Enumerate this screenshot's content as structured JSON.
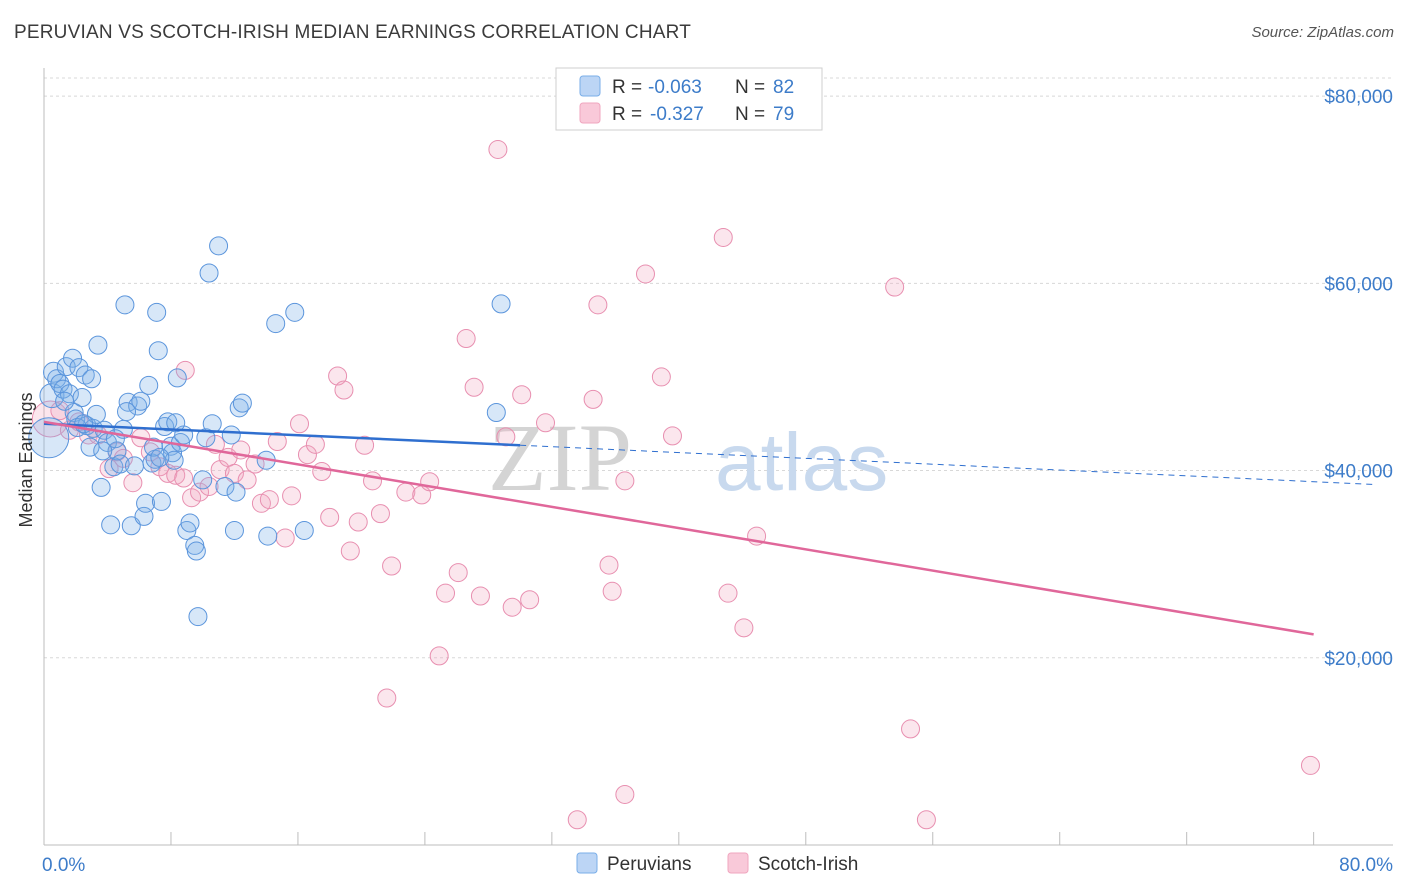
{
  "title": "PERUVIAN VS SCOTCH-IRISH MEDIAN EARNINGS CORRELATION CHART",
  "source": "Source: ZipAtlas.com",
  "watermark": {
    "zip": "ZIP",
    "atlas": "atlas"
  },
  "colors": {
    "blue": "#7aaee8",
    "blue_line": "#2f6fcf",
    "pink": "#f0a6bf",
    "pink_line": "#e0679a",
    "grid": "#d8d8d8",
    "axis_text": "#3d7cc9"
  },
  "legend": {
    "rows": [
      {
        "r_label": "R = ",
        "r_value": "-0.063",
        "n_label": "N = ",
        "n_value": "82"
      },
      {
        "r_label": "R = ",
        "r_value": "-0.327",
        "n_label": "N = ",
        "n_value": "79"
      }
    ]
  },
  "bottom_legend": [
    "Peruvians",
    "Scotch-Irish"
  ],
  "chart_data": {
    "type": "scatter",
    "title": "PERUVIAN VS SCOTCH-IRISH MEDIAN EARNINGS CORRELATION CHART",
    "xlabel": "",
    "ylabel": "Median Earnings",
    "xlim": [
      0,
      85
    ],
    "ylim": [
      0,
      83000
    ],
    "x_tick_labels": [
      "0.0%",
      "80.0%"
    ],
    "y_ticks": [
      20000,
      40000,
      60000,
      80000
    ],
    "y_tick_labels": [
      "$20,000",
      "$40,000",
      "$60,000",
      "$80,000"
    ],
    "series": [
      {
        "name": "Peruvians",
        "r": -0.063,
        "n": 82,
        "trend": {
          "x0": 0,
          "y0": 45000,
          "x1": 30,
          "y1": 42700,
          "dash_to_x": 84,
          "dash_to_y": 38500
        },
        "points": [
          [
            0.3,
            43500,
            20
          ],
          [
            0.5,
            48000,
            12
          ],
          [
            0.6,
            50500,
            10
          ],
          [
            0.8,
            49800,
            9
          ],
          [
            1.0,
            49300,
            9
          ],
          [
            1.2,
            48700,
            9
          ],
          [
            1.4,
            51100,
            9
          ],
          [
            1.6,
            48200,
            9
          ],
          [
            1.8,
            52000,
            9
          ],
          [
            1.9,
            46200,
            9
          ],
          [
            2.0,
            45500,
            9
          ],
          [
            2.2,
            51000,
            9
          ],
          [
            2.4,
            47800,
            9
          ],
          [
            2.6,
            50200,
            9
          ],
          [
            2.7,
            44800,
            9
          ],
          [
            2.9,
            42500,
            9
          ],
          [
            3.1,
            44500,
            9
          ],
          [
            3.3,
            46000,
            9
          ],
          [
            3.4,
            53400,
            9
          ],
          [
            3.6,
            38200,
            9
          ],
          [
            3.8,
            44300,
            9
          ],
          [
            4.0,
            43000,
            9
          ],
          [
            4.2,
            34200,
            9
          ],
          [
            4.4,
            40400,
            9
          ],
          [
            4.6,
            42100,
            9
          ],
          [
            4.8,
            40700,
            9
          ],
          [
            5.0,
            44400,
            9
          ],
          [
            5.1,
            57700,
            9
          ],
          [
            5.3,
            47300,
            9
          ],
          [
            5.5,
            34100,
            9
          ],
          [
            5.7,
            40500,
            9
          ],
          [
            5.9,
            46900,
            9
          ],
          [
            6.1,
            47400,
            9
          ],
          [
            6.3,
            35100,
            9
          ],
          [
            6.4,
            36500,
            9
          ],
          [
            6.6,
            49100,
            9
          ],
          [
            6.8,
            40800,
            9
          ],
          [
            7.0,
            41200,
            9
          ],
          [
            7.1,
            56900,
            9
          ],
          [
            7.2,
            52800,
            9
          ],
          [
            7.4,
            36700,
            9
          ],
          [
            7.6,
            44700,
            9
          ],
          [
            7.8,
            45200,
            9
          ],
          [
            8.0,
            42600,
            9
          ],
          [
            8.1,
            41900,
            9
          ],
          [
            8.2,
            41100,
            9
          ],
          [
            8.4,
            49900,
            9
          ],
          [
            8.6,
            43000,
            9
          ],
          [
            8.8,
            43800,
            9
          ],
          [
            9.0,
            33600,
            9
          ],
          [
            9.2,
            34400,
            9
          ],
          [
            9.5,
            32000,
            9
          ],
          [
            9.6,
            31400,
            9
          ],
          [
            9.7,
            24400,
            9
          ],
          [
            10.0,
            39000,
            9
          ],
          [
            10.2,
            43500,
            9
          ],
          [
            10.4,
            61100,
            9
          ],
          [
            10.6,
            45000,
            9
          ],
          [
            11.0,
            64000,
            9
          ],
          [
            11.4,
            38300,
            9
          ],
          [
            11.8,
            43800,
            9
          ],
          [
            12.0,
            33600,
            9
          ],
          [
            12.1,
            37700,
            9
          ],
          [
            12.3,
            46700,
            9
          ],
          [
            12.5,
            47200,
            9
          ],
          [
            14.0,
            41100,
            9
          ],
          [
            14.1,
            33000,
            9
          ],
          [
            14.6,
            55700,
            9
          ],
          [
            15.8,
            56900,
            9
          ],
          [
            16.4,
            33600,
            9
          ],
          [
            28.5,
            46200,
            9
          ],
          [
            28.8,
            57800,
            9
          ],
          [
            2.1,
            44600,
            9
          ],
          [
            3.0,
            49800,
            9
          ],
          [
            4.5,
            43400,
            9
          ],
          [
            5.2,
            46300,
            9
          ],
          [
            6.9,
            42500,
            9
          ],
          [
            1.3,
            47400,
            9
          ],
          [
            2.5,
            45000,
            9
          ],
          [
            3.7,
            42100,
            9
          ],
          [
            7.3,
            41400,
            9
          ],
          [
            8.3,
            45100,
            9
          ]
        ]
      },
      {
        "name": "Scotch-Irish",
        "r": -0.327,
        "n": 79,
        "trend": {
          "x0": 0,
          "y0": 45200,
          "x1": 80,
          "y1": 22500
        },
        "points": [
          [
            0.4,
            45500,
            18
          ],
          [
            1.0,
            46400,
            9
          ],
          [
            1.6,
            44300,
            9
          ],
          [
            2.2,
            45200,
            9
          ],
          [
            2.8,
            43800,
            9
          ],
          [
            3.4,
            43800,
            9
          ],
          [
            4.1,
            40200,
            9
          ],
          [
            4.6,
            42000,
            9
          ],
          [
            5.0,
            41300,
            9
          ],
          [
            5.6,
            38700,
            9
          ],
          [
            6.1,
            43500,
            9
          ],
          [
            6.7,
            42000,
            9
          ],
          [
            7.3,
            40400,
            9
          ],
          [
            7.8,
            39700,
            9
          ],
          [
            8.3,
            39500,
            9
          ],
          [
            8.8,
            39200,
            9
          ],
          [
            8.9,
            50700,
            9
          ],
          [
            9.3,
            37100,
            9
          ],
          [
            9.8,
            37700,
            9
          ],
          [
            10.4,
            38300,
            9
          ],
          [
            10.8,
            42800,
            9
          ],
          [
            11.1,
            40100,
            9
          ],
          [
            11.6,
            41400,
            9
          ],
          [
            12.0,
            39700,
            9
          ],
          [
            12.4,
            42200,
            9
          ],
          [
            12.8,
            39000,
            9
          ],
          [
            13.3,
            40700,
            9
          ],
          [
            13.7,
            36500,
            9
          ],
          [
            14.2,
            36900,
            9
          ],
          [
            14.7,
            43100,
            9
          ],
          [
            15.2,
            32800,
            9
          ],
          [
            15.6,
            37300,
            9
          ],
          [
            16.1,
            45000,
            9
          ],
          [
            16.6,
            41700,
            9
          ],
          [
            17.1,
            42800,
            9
          ],
          [
            17.5,
            39900,
            9
          ],
          [
            18.0,
            35000,
            9
          ],
          [
            18.5,
            50100,
            9
          ],
          [
            18.9,
            48600,
            9
          ],
          [
            19.3,
            31400,
            9
          ],
          [
            19.8,
            34500,
            9
          ],
          [
            20.2,
            42700,
            9
          ],
          [
            20.7,
            38900,
            9
          ],
          [
            21.2,
            35400,
            9
          ],
          [
            21.6,
            15700,
            9
          ],
          [
            21.9,
            29800,
            9
          ],
          [
            22.8,
            37700,
            9
          ],
          [
            23.8,
            37400,
            9
          ],
          [
            24.3,
            38800,
            9
          ],
          [
            24.9,
            20200,
            9
          ],
          [
            25.3,
            26900,
            9
          ],
          [
            26.1,
            29100,
            9
          ],
          [
            26.6,
            54100,
            9
          ],
          [
            27.1,
            48900,
            9
          ],
          [
            27.5,
            26600,
            9
          ],
          [
            28.6,
            74300,
            9
          ],
          [
            29.1,
            43600,
            9
          ],
          [
            29.5,
            25400,
            9
          ],
          [
            30.1,
            48100,
            9
          ],
          [
            30.6,
            26200,
            9
          ],
          [
            31.6,
            45100,
            9
          ],
          [
            33.6,
            2700,
            9
          ],
          [
            34.6,
            47600,
            9
          ],
          [
            34.9,
            57700,
            9
          ],
          [
            35.6,
            29900,
            9
          ],
          [
            35.8,
            27100,
            9
          ],
          [
            36.6,
            38900,
            9
          ],
          [
            36.6,
            5400,
            9
          ],
          [
            37.9,
            61000,
            9
          ],
          [
            38.9,
            50000,
            9
          ],
          [
            39.6,
            43700,
            9
          ],
          [
            42.8,
            64900,
            9
          ],
          [
            43.1,
            26900,
            9
          ],
          [
            44.1,
            23200,
            9
          ],
          [
            44.9,
            33000,
            9
          ],
          [
            53.6,
            59600,
            9
          ],
          [
            54.6,
            12400,
            9
          ],
          [
            55.6,
            2700,
            9
          ],
          [
            79.8,
            8500,
            9
          ]
        ]
      }
    ]
  }
}
